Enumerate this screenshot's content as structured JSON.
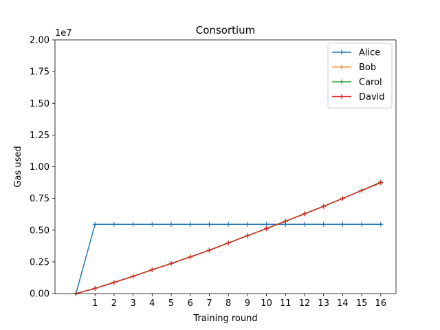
{
  "chart_data": {
    "type": "line",
    "title": "Consortium",
    "xlabel": "Training round",
    "ylabel": "Gas used",
    "y_offset_label": "1e7",
    "xlim": [
      -1.1,
      16.8
    ],
    "ylim": [
      0,
      20000000
    ],
    "x_ticks": [
      1,
      2,
      3,
      4,
      5,
      6,
      7,
      8,
      9,
      10,
      11,
      12,
      13,
      14,
      15,
      16
    ],
    "y_ticks": [
      0,
      2500000,
      5000000,
      7500000,
      10000000,
      12500000,
      15000000,
      17500000,
      20000000
    ],
    "y_tick_labels": [
      "0.00",
      "0.25",
      "0.50",
      "0.75",
      "1.00",
      "1.25",
      "1.50",
      "1.75",
      "2.00"
    ],
    "grid": false,
    "legend_position": "top-right",
    "x": [
      0,
      1,
      2,
      3,
      4,
      5,
      6,
      7,
      8,
      9,
      10,
      11,
      12,
      13,
      14,
      15,
      16
    ],
    "series": [
      {
        "name": "Alice",
        "color": "#1f77b4",
        "values": [
          0,
          5460000,
          5460000,
          5460000,
          5460000,
          5460000,
          5460000,
          5460000,
          5460000,
          5460000,
          5460000,
          5460000,
          5460000,
          5460000,
          5460000,
          5460000,
          5460000
        ]
      },
      {
        "name": "Bob",
        "color": "#ff7f0e",
        "values": [
          0,
          410000,
          880000,
          1360000,
          1880000,
          2370000,
          2890000,
          3420000,
          3990000,
          4560000,
          5130000,
          5700000,
          6290000,
          6880000,
          7500000,
          8130000,
          8750000
        ]
      },
      {
        "name": "Carol",
        "color": "#2ca02c",
        "values": [
          0,
          415000,
          885000,
          1365000,
          1885000,
          2375000,
          2895000,
          3425000,
          3995000,
          4565000,
          5135000,
          5705000,
          6295000,
          6885000,
          7505000,
          8135000,
          8790000
        ]
      },
      {
        "name": "David",
        "color": "#d62728",
        "values": [
          0,
          405000,
          875000,
          1355000,
          1875000,
          2365000,
          2885000,
          3415000,
          3985000,
          4555000,
          5125000,
          5695000,
          6285000,
          6875000,
          7495000,
          8125000,
          8740000
        ]
      }
    ]
  }
}
